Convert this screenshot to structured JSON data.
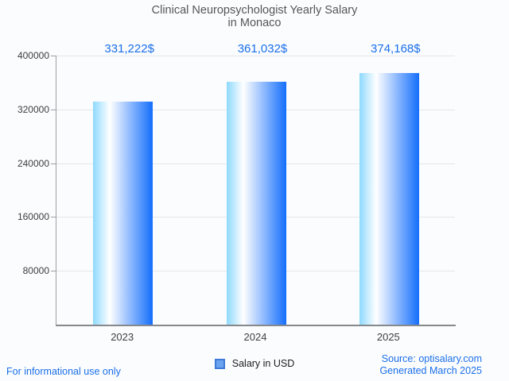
{
  "chart": {
    "title_lines": [
      "Clinical Neuropsychologist Yearly Salary",
      "in Monaco"
    ],
    "legend_label": "Salary in USD"
  },
  "chart_data": {
    "type": "bar",
    "title": "Clinical Neuropsychologist Yearly Salary in Monaco",
    "categories": [
      "2023",
      "2024",
      "2025"
    ],
    "series": [
      {
        "name": "Salary in USD",
        "values": [
          331222,
          361032,
          374168
        ],
        "value_labels": [
          "331,222$",
          "361,032$",
          "374,168$"
        ]
      }
    ],
    "xlabel": "",
    "ylabel": "",
    "ylim": [
      0,
      400000
    ],
    "yticks": [
      80000,
      160000,
      240000,
      320000,
      400000
    ],
    "grid": true,
    "legend_position": "bottom",
    "bar_gradient": [
      "#8ed9fd",
      "#ffffff",
      "#146efc"
    ]
  },
  "footer": {
    "disclaimer": "For informational use only",
    "source": "Source: optisalary.com",
    "generated": "Generated March 2025"
  },
  "colors": {
    "accent_blue": "#1a6fe8",
    "title_gray": "#53565a",
    "axis_gray": "#9aa0a6",
    "gridline_gray": "#e4e6ea",
    "legend_swatch_fill": "#6ba3ee",
    "legend_swatch_border": "#3e7ad8",
    "background": "#fbfcfe"
  }
}
